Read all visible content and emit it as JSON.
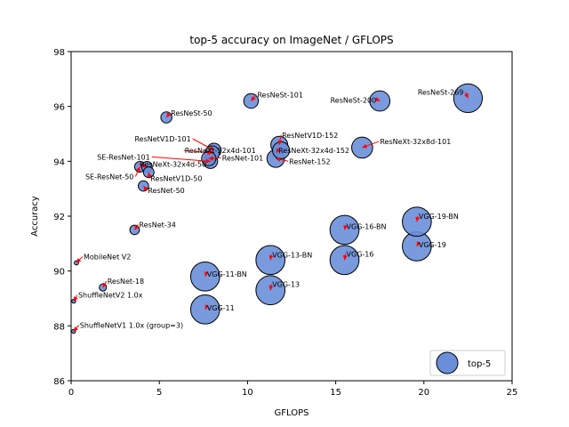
{
  "chart_data": {
    "type": "scatter",
    "title": "top-5 accuracy on ImageNet / GFLOPS",
    "xlabel": "GFLOPS",
    "ylabel": "Accuracy",
    "xlim": [
      0,
      25
    ],
    "ylim": [
      86,
      98
    ],
    "xticks": [
      0,
      5,
      10,
      15,
      20,
      25
    ],
    "yticks": [
      86,
      88,
      90,
      92,
      94,
      96,
      98
    ],
    "grid": false,
    "legend": {
      "label": "top-5",
      "position": "lower-right"
    },
    "colors": {
      "marker_fill": "#6a8fd8",
      "marker_edge": "#000000",
      "arrow": "#ff0000"
    },
    "points": [
      {
        "label": "ShuffleNetV1 1.0x (group=3)",
        "x": 0.14,
        "y": 87.8,
        "size": 0.5
      },
      {
        "label": "ShuffleNetV2 1.0x",
        "x": 0.15,
        "y": 88.9,
        "size": 0.5
      },
      {
        "label": "MobileNet V2",
        "x": 0.3,
        "y": 90.3,
        "size": 0.9
      },
      {
        "label": "ResNet-18",
        "x": 1.8,
        "y": 89.4,
        "size": 2.5
      },
      {
        "label": "ResNet-34",
        "x": 3.6,
        "y": 91.5,
        "size": 4.4
      },
      {
        "label": "ResNet-50",
        "x": 4.1,
        "y": 93.1,
        "size": 5.2
      },
      {
        "label": "SE-ResNet-50",
        "x": 3.9,
        "y": 93.8,
        "size": 5.5
      },
      {
        "label": "ResNeXt-32x4d-50",
        "x": 4.3,
        "y": 93.8,
        "size": 5.5
      },
      {
        "label": "ResNetV1D-50",
        "x": 4.4,
        "y": 93.6,
        "size": 5.5
      },
      {
        "label": "ResNeSt-50",
        "x": 5.4,
        "y": 95.6,
        "size": 6.0
      },
      {
        "label": "SE-ResNet-101",
        "x": 7.9,
        "y": 94.0,
        "size": 10.0
      },
      {
        "label": "ResNetV1D-101",
        "x": 8.1,
        "y": 94.4,
        "size": 10.0
      },
      {
        "label": "ResNeXt-32x4d-101",
        "x": 8.0,
        "y": 94.3,
        "size": 10.0
      },
      {
        "label": "ResNet-101",
        "x": 7.8,
        "y": 94.1,
        "size": 10.0
      },
      {
        "label": "ResNeSt-101",
        "x": 10.2,
        "y": 96.2,
        "size": 10.4
      },
      {
        "label": "ResNet-152",
        "x": 11.6,
        "y": 94.1,
        "size": 15.0
      },
      {
        "label": "ResNetV1D-152",
        "x": 11.8,
        "y": 94.6,
        "size": 14.0
      },
      {
        "label": "ResNeXt-32x4d-152",
        "x": 11.9,
        "y": 94.4,
        "size": 14.0
      },
      {
        "label": "ResNeXt-32x8d-101",
        "x": 16.5,
        "y": 94.5,
        "size": 21.5
      },
      {
        "label": "ResNeSt-200",
        "x": 17.5,
        "y": 96.2,
        "size": 20.0
      },
      {
        "label": "ResNeSt-269",
        "x": 22.5,
        "y": 96.3,
        "size": 40.0
      },
      {
        "label": "VGG-11",
        "x": 7.6,
        "y": 88.6,
        "size": 41.0
      },
      {
        "label": "VGG-11-BN",
        "x": 7.6,
        "y": 89.8,
        "size": 41.0
      },
      {
        "label": "VGG-13",
        "x": 11.3,
        "y": 89.3,
        "size": 41.0
      },
      {
        "label": "VGG-13-BN",
        "x": 11.3,
        "y": 90.4,
        "size": 41.0
      },
      {
        "label": "VGG-16",
        "x": 15.5,
        "y": 90.4,
        "size": 41.0
      },
      {
        "label": "VGG-16-BN",
        "x": 15.5,
        "y": 91.5,
        "size": 41.0
      },
      {
        "label": "VGG-19",
        "x": 19.6,
        "y": 90.9,
        "size": 41.0
      },
      {
        "label": "VGG-19-BN",
        "x": 19.6,
        "y": 91.8,
        "size": 41.0
      }
    ]
  }
}
